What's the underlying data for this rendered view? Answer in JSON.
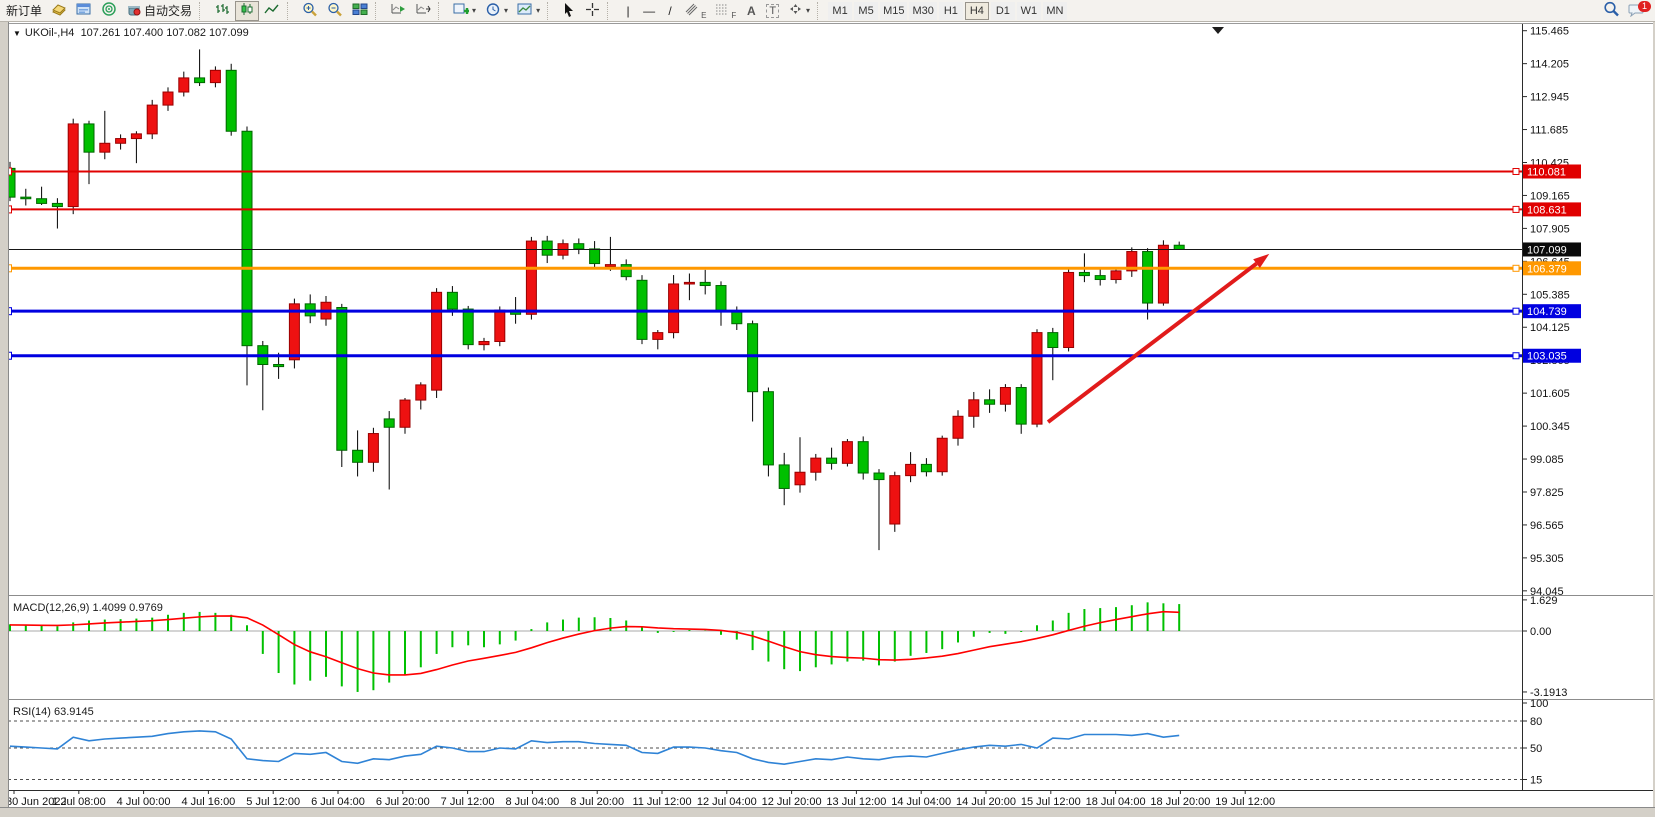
{
  "toolbar": {
    "new_order_label": "新订单",
    "autotrade_label": "自动交易",
    "timeframes": [
      "M1",
      "M5",
      "M15",
      "M30",
      "H1",
      "H4",
      "D1",
      "W1",
      "MN"
    ],
    "active_timeframe": "H4",
    "notification_count": "1",
    "glyphs": {
      "caret": "▾",
      "vline": "|",
      "hline": "—",
      "trendline": "/",
      "channel_suffix": "E",
      "fibo_suffix": "F",
      "text_tool": "A",
      "label_tool": "T",
      "collapse": "▼"
    }
  },
  "chart": {
    "symbol_period": "UKOil-,H4",
    "ohlc": "107.261 107.400 107.082 107.099"
  },
  "indicators": {
    "macd_label": "MACD(12,26,9) 1.4099 0.9769",
    "rsi_label": "RSI(14) 63.9145"
  },
  "chart_data": [
    {
      "type": "candlestick",
      "title": "UKOil-,H4",
      "ohlc_display": [
        107.261,
        107.4,
        107.082,
        107.099
      ],
      "ylim": [
        94.045,
        115.465
      ],
      "y_ticks": [
        115.465,
        114.205,
        112.945,
        111.685,
        110.425,
        109.165,
        107.905,
        106.645,
        105.385,
        104.125,
        102.865,
        101.605,
        100.345,
        99.085,
        97.825,
        96.565,
        95.305,
        94.045
      ],
      "x_labels": [
        "30 Jun 2022",
        "1 Jul 08:00",
        "4 Jul 00:00",
        "4 Jul 16:00",
        "5 Jul 12:00",
        "6 Jul 04:00",
        "6 Jul 20:00",
        "7 Jul 12:00",
        "8 Jul 04:00",
        "8 Jul 20:00",
        "11 Jul 12:00",
        "12 Jul 04:00",
        "12 Jul 20:00",
        "13 Jul 12:00",
        "14 Jul 04:00",
        "14 Jul 20:00",
        "15 Jul 12:00",
        "18 Jul 04:00",
        "18 Jul 20:00",
        "19 Jul 12:00"
      ],
      "bars": [
        [
          110.2,
          110.45,
          108.95,
          109.1
        ],
        [
          109.1,
          109.42,
          108.78,
          109.04
        ],
        [
          109.04,
          109.5,
          108.8,
          108.86
        ],
        [
          108.86,
          109.06,
          107.9,
          108.74
        ],
        [
          108.74,
          112.1,
          108.45,
          111.9
        ],
        [
          111.9,
          112.02,
          109.6,
          110.82
        ],
        [
          110.82,
          112.4,
          110.55,
          111.16
        ],
        [
          111.16,
          111.5,
          110.92,
          111.34
        ],
        [
          111.34,
          111.62,
          110.4,
          111.52
        ],
        [
          111.52,
          112.82,
          111.32,
          112.62
        ],
        [
          112.62,
          113.3,
          112.4,
          113.12
        ],
        [
          113.12,
          113.9,
          112.95,
          113.66
        ],
        [
          113.66,
          114.75,
          113.35,
          113.48
        ],
        [
          113.48,
          114.1,
          113.3,
          113.95
        ],
        [
          113.95,
          114.2,
          111.45,
          111.62
        ],
        [
          111.62,
          111.8,
          101.9,
          103.42
        ],
        [
          103.42,
          103.6,
          100.95,
          102.7
        ],
        [
          102.7,
          103.15,
          102.15,
          102.62
        ],
        [
          102.88,
          105.22,
          102.55,
          105.02
        ],
        [
          105.02,
          105.38,
          104.28,
          104.56
        ],
        [
          104.44,
          105.32,
          104.18,
          105.08
        ],
        [
          104.88,
          105.02,
          98.78,
          99.42
        ],
        [
          99.42,
          100.18,
          98.42,
          98.96
        ],
        [
          98.96,
          100.28,
          98.6,
          100.06
        ],
        [
          100.62,
          100.92,
          97.92,
          100.3
        ],
        [
          100.3,
          101.42,
          100.05,
          101.34
        ],
        [
          101.34,
          102.02,
          100.98,
          101.92
        ],
        [
          101.72,
          105.62,
          101.42,
          105.46
        ],
        [
          105.46,
          105.7,
          104.56,
          104.82
        ],
        [
          104.82,
          104.94,
          103.28,
          103.46
        ],
        [
          103.46,
          103.72,
          103.24,
          103.58
        ],
        [
          103.58,
          104.92,
          103.4,
          104.78
        ],
        [
          104.78,
          105.28,
          104.26,
          104.62
        ],
        [
          104.62,
          107.58,
          104.42,
          107.42
        ],
        [
          107.42,
          107.62,
          106.58,
          106.88
        ],
        [
          106.88,
          107.48,
          106.72,
          107.32
        ],
        [
          107.32,
          107.52,
          106.92,
          107.12
        ],
        [
          107.12,
          107.42,
          106.38,
          106.56
        ],
        [
          106.44,
          107.58,
          106.28,
          106.52
        ],
        [
          106.52,
          106.72,
          105.92,
          106.06
        ],
        [
          105.92,
          106.12,
          103.48,
          103.66
        ],
        [
          103.66,
          104.02,
          103.28,
          103.92
        ],
        [
          103.92,
          106.12,
          103.7,
          105.78
        ],
        [
          105.78,
          106.18,
          105.16,
          105.84
        ],
        [
          105.84,
          106.32,
          105.38,
          105.72
        ],
        [
          105.72,
          105.88,
          104.18,
          104.72
        ],
        [
          104.72,
          104.92,
          104.02,
          104.26
        ],
        [
          104.26,
          104.38,
          100.52,
          101.66
        ],
        [
          101.66,
          101.82,
          98.42,
          98.86
        ],
        [
          98.86,
          99.32,
          97.32,
          97.96
        ],
        [
          98.1,
          99.92,
          97.8,
          98.58
        ],
        [
          98.58,
          99.28,
          98.26,
          99.12
        ],
        [
          99.12,
          99.52,
          98.68,
          98.92
        ],
        [
          98.92,
          99.85,
          98.8,
          99.75
        ],
        [
          99.75,
          99.95,
          98.3,
          98.55
        ],
        [
          98.55,
          98.7,
          95.6,
          98.3
        ],
        [
          96.6,
          98.6,
          96.3,
          98.45
        ],
        [
          98.45,
          99.35,
          98.2,
          98.88
        ],
        [
          98.88,
          99.12,
          98.42,
          98.6
        ],
        [
          98.6,
          99.98,
          98.45,
          99.88
        ],
        [
          99.88,
          100.95,
          99.6,
          100.72
        ],
        [
          100.72,
          101.65,
          100.28,
          101.35
        ],
        [
          101.35,
          101.75,
          100.85,
          101.18
        ],
        [
          101.18,
          101.95,
          100.9,
          101.82
        ],
        [
          101.82,
          101.95,
          100.05,
          100.42
        ],
        [
          100.42,
          104.05,
          100.3,
          103.92
        ],
        [
          103.92,
          104.1,
          102.1,
          103.35
        ],
        [
          103.35,
          106.35,
          103.2,
          106.22
        ],
        [
          106.22,
          106.95,
          105.85,
          106.1
        ],
        [
          106.1,
          106.4,
          105.72,
          105.95
        ],
        [
          105.95,
          106.35,
          105.8,
          106.28
        ],
        [
          106.28,
          107.18,
          106.05,
          107.02
        ],
        [
          107.02,
          107.15,
          104.42,
          105.05
        ],
        [
          105.05,
          107.45,
          104.95,
          107.26
        ],
        [
          107.261,
          107.4,
          107.082,
          107.099
        ]
      ],
      "colors": {
        "bull": "#ee1111",
        "bull_border": "#990000",
        "bear": "#00c000",
        "bear_border": "#006600",
        "wick": "#000000",
        "background": "#ffffff"
      },
      "price_lines": [
        {
          "price": 110.081,
          "color": "#e00000",
          "width": 2
        },
        {
          "price": 108.631,
          "color": "#e00000",
          "width": 2
        },
        {
          "price": 106.379,
          "color": "#ff9800",
          "width": 3
        },
        {
          "price": 104.739,
          "color": "#0000e0",
          "width": 3
        },
        {
          "price": 103.035,
          "color": "#0000e0",
          "width": 3
        }
      ],
      "current_price": {
        "price": 107.099,
        "color": "#161616",
        "width": 1
      },
      "annotations": {
        "trend_arrow": {
          "from_bar": 65.7,
          "from_price": 100.5,
          "to_bar": 79.7,
          "to_price": 106.93,
          "color": "#e11b1b"
        }
      }
    },
    {
      "type": "macd",
      "params": "12,26,9",
      "main_value": 1.4099,
      "signal_value": 0.9769,
      "y_ticks": [
        {
          "v": 1.629,
          "label": "1.629"
        },
        {
          "v": 0,
          "label": "0.00"
        },
        {
          "v": -3.1913,
          "label": "-3.1913"
        }
      ],
      "histogram": [
        0.35,
        0.3,
        0.28,
        0.25,
        0.45,
        0.55,
        0.6,
        0.62,
        0.65,
        0.7,
        0.85,
        0.95,
        1.0,
        0.95,
        0.85,
        0.3,
        -1.2,
        -2.2,
        -2.8,
        -2.6,
        -2.4,
        -2.9,
        -3.19,
        -3.1,
        -2.7,
        -2.3,
        -1.9,
        -1.2,
        -0.85,
        -0.75,
        -0.85,
        -0.7,
        -0.5,
        0.1,
        0.45,
        0.6,
        0.7,
        0.72,
        0.68,
        0.55,
        0.2,
        -0.1,
        -0.05,
        0.05,
        0.02,
        -0.2,
        -0.45,
        -1.0,
        -1.6,
        -2.0,
        -2.1,
        -1.9,
        -1.75,
        -1.6,
        -1.55,
        -1.8,
        -1.6,
        -1.3,
        -1.15,
        -0.95,
        -0.6,
        -0.3,
        -0.1,
        -0.15,
        -0.05,
        0.3,
        0.55,
        0.95,
        1.15,
        1.2,
        1.25,
        1.35,
        1.5,
        1.45,
        1.4099
      ],
      "signal": [
        0.32,
        0.31,
        0.3,
        0.29,
        0.32,
        0.37,
        0.42,
        0.46,
        0.5,
        0.54,
        0.6,
        0.67,
        0.74,
        0.78,
        0.79,
        0.69,
        0.31,
        -0.19,
        -0.71,
        -1.09,
        -1.35,
        -1.66,
        -1.97,
        -2.2,
        -2.3,
        -2.3,
        -2.22,
        -2.02,
        -1.78,
        -1.57,
        -1.43,
        -1.28,
        -1.12,
        -0.88,
        -0.61,
        -0.37,
        -0.16,
        0.02,
        0.15,
        0.23,
        0.22,
        0.16,
        0.12,
        0.1,
        0.08,
        0.03,
        -0.07,
        -0.26,
        -0.53,
        -0.82,
        -1.08,
        -1.24,
        -1.34,
        -1.39,
        -1.42,
        -1.5,
        -1.52,
        -1.48,
        -1.41,
        -1.32,
        -1.18,
        -1.0,
        -0.82,
        -0.69,
        -0.56,
        -0.39,
        -0.2,
        0.03,
        0.25,
        0.44,
        0.6,
        0.75,
        0.9,
        1.01,
        0.9769
      ],
      "colors": {
        "histogram": "#00c000",
        "signal": "#ff0000",
        "zero_line": "#a8a8a8"
      }
    },
    {
      "type": "rsi",
      "period": 14,
      "value": 63.9145,
      "y_ticks": [
        {
          "v": 100,
          "label": "100"
        },
        {
          "v": 80,
          "label": "80"
        },
        {
          "v": 50,
          "label": "50"
        },
        {
          "v": 15,
          "label": "15"
        }
      ],
      "levels": [
        80,
        50,
        15
      ],
      "values": [
        52,
        51,
        50,
        49,
        62,
        58,
        60,
        61,
        62,
        63,
        66,
        68,
        69,
        68,
        60,
        38,
        36,
        35,
        44,
        43,
        45,
        35,
        33,
        38,
        37,
        41,
        43,
        52,
        50,
        46,
        46,
        50,
        49,
        58,
        56,
        57,
        57,
        55,
        54,
        53,
        45,
        44,
        51,
        51,
        50,
        47,
        45,
        38,
        34,
        32,
        35,
        38,
        37,
        40,
        38,
        37,
        40,
        41,
        40,
        44,
        48,
        51,
        53,
        52,
        54,
        50,
        61,
        60,
        65,
        65,
        65,
        64,
        66,
        62,
        63.9145
      ],
      "color": "#2f83d6"
    }
  ]
}
